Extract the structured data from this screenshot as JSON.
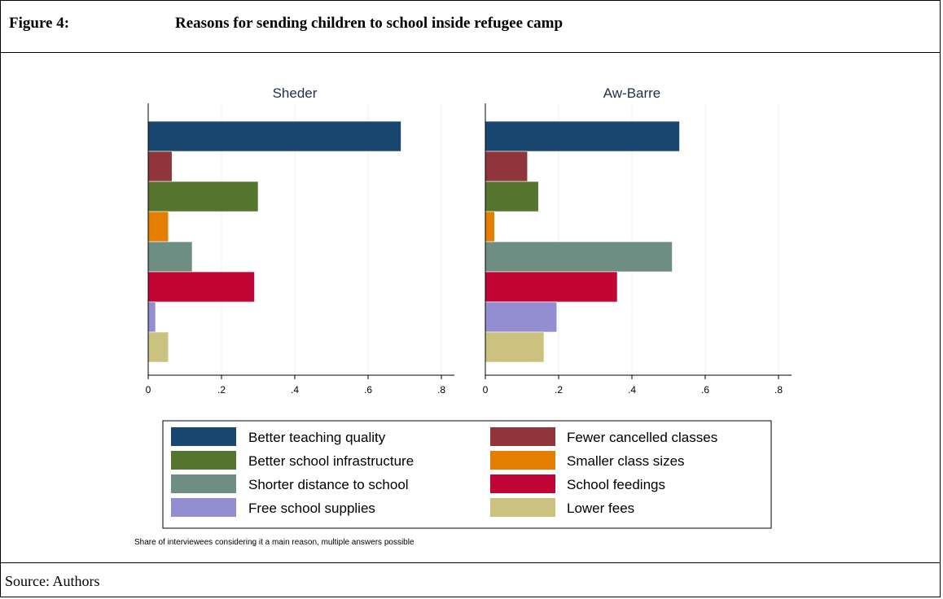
{
  "figure": {
    "label": "Figure 4:",
    "title": "Reasons for sending children to school inside refugee camp",
    "source": "Source: Authors"
  },
  "chart_data": {
    "type": "bar",
    "orientation": "horizontal",
    "note": "Share of interviewees considering it a main reason, multiple answers possible",
    "xlim": [
      0,
      0.8
    ],
    "x_ticks": [
      0,
      0.2,
      0.4,
      0.6,
      0.8
    ],
    "x_tick_labels": [
      "0",
      ".2",
      ".4",
      ".6",
      ".8"
    ],
    "grid": true,
    "legend_position": "bottom",
    "categories": [
      "Better teaching quality",
      "Fewer cancelled classes",
      "Better school infrastructure",
      "Smaller class sizes",
      "Shorter distance to school",
      "School feedings",
      "Free school supplies",
      "Lower fees"
    ],
    "colors": [
      "#1a476f",
      "#90353b",
      "#55752f",
      "#e37e00",
      "#6e8e84",
      "#c10534",
      "#938dd2",
      "#cac27e"
    ],
    "panels": [
      {
        "title": "Sheder",
        "values": [
          0.69,
          0.065,
          0.3,
          0.055,
          0.12,
          0.29,
          0.02,
          0.055
        ]
      },
      {
        "title": "Aw-Barre",
        "values": [
          0.53,
          0.115,
          0.145,
          0.025,
          0.51,
          0.36,
          0.195,
          0.16
        ]
      }
    ],
    "legend": [
      "Better teaching quality",
      "Fewer cancelled classes",
      "Better school infrastructure",
      "Smaller class sizes",
      "Shorter distance to school",
      "School feedings",
      "Free school supplies",
      "Lower fees"
    ]
  }
}
